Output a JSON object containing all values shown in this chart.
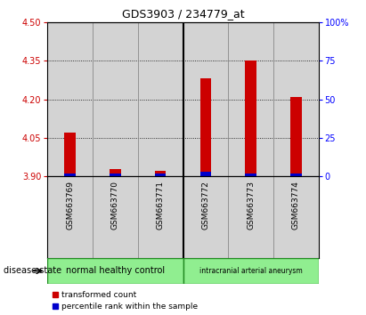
{
  "title": "GDS3903 / 234779_at",
  "samples": [
    "GSM663769",
    "GSM663770",
    "GSM663771",
    "GSM663772",
    "GSM663773",
    "GSM663774"
  ],
  "transformed_counts": [
    4.07,
    3.93,
    3.92,
    4.28,
    4.35,
    4.21
  ],
  "percentile_ranks": [
    2,
    2,
    2,
    3,
    2,
    2
  ],
  "y_min": 3.9,
  "y_max": 4.5,
  "y_ticks": [
    3.9,
    4.05,
    4.2,
    4.35,
    4.5
  ],
  "y2_ticks": [
    0,
    25,
    50,
    75,
    100
  ],
  "y2_labels": [
    "0",
    "25",
    "50",
    "75",
    "100%"
  ],
  "group1_label": "normal healthy control",
  "group2_label": "intracranial arterial aneurysm",
  "group_color": "#90ee90",
  "group_border": "#228B22",
  "bar_color_red": "#cc0000",
  "bar_color_blue": "#0000cc",
  "bar_width": 0.25,
  "background_plot": "#d3d3d3",
  "legend_red_label": "transformed count",
  "legend_blue_label": "percentile rank within the sample",
  "disease_state_label": "disease state"
}
